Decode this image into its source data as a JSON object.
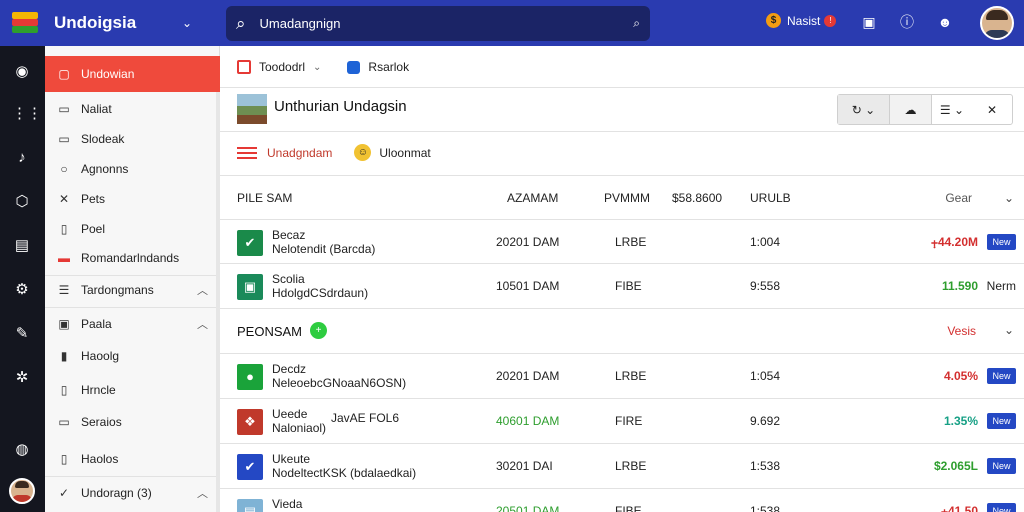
{
  "topbar": {
    "brand": "Undoigsia",
    "search_text": "Umadangnign",
    "notif_label": "Nasist",
    "avatar_alt": ""
  },
  "sidebar": {
    "items": [
      {
        "icon": "folder-icon",
        "label": "Undowian",
        "active": true
      },
      {
        "icon": "note-icon",
        "label": "Naliat"
      },
      {
        "icon": "doc-icon",
        "label": "Slodeak"
      },
      {
        "icon": "search-icon",
        "label": "Agnonns"
      },
      {
        "icon": "tool-icon",
        "label": "Pets"
      },
      {
        "icon": "file-icon",
        "label": "Poel"
      },
      {
        "icon": "table-icon",
        "label": "Romandarlndands"
      },
      {
        "icon": "list-icon",
        "label": "Tardongmans",
        "chevron": "^"
      },
      {
        "icon": "image-icon",
        "label": "Paala",
        "chevron": "^"
      },
      {
        "icon": "video-icon",
        "label": "Haoolg"
      },
      {
        "icon": "page-icon",
        "label": "Hrncle"
      },
      {
        "icon": "box-icon",
        "label": "Seraios"
      },
      {
        "icon": "file2-icon",
        "label": "Haolos"
      },
      {
        "icon": "check-icon",
        "label": "Undoragn (3)",
        "chevron": "^"
      }
    ]
  },
  "main": {
    "breadcrumb": {
      "item1": "Toododrl",
      "item2": "Rsarlok"
    },
    "title": "Unthurian Undagsin",
    "subbar": {
      "label1": "Unadgndam",
      "label2": "Uloonmat"
    },
    "table_header": {
      "col_name": "PILE   SAM",
      "col_time": "AZAMAM",
      "col_type": "PVMMM",
      "col_num": "$58.8600",
      "col_unit": "URULB",
      "col_right": "Gear"
    },
    "group1_rows": [
      {
        "icon_color": "#1a8a4a",
        "icon": "✔",
        "name": "Becaz",
        "sub": "Nelotendit (Barcda)",
        "time": "20201 DAM",
        "type": "LRBE",
        "num": "1:004",
        "amount": "⨥44.20M",
        "amount_color": "#d32f2f",
        "tag": "New"
      },
      {
        "icon_color": "#1a8a5a",
        "icon": "▣",
        "name": "Scolia",
        "sub": "HdolgdCSdrdaun)",
        "time": "10501 DAM",
        "type": "FIBE",
        "num": "9:558",
        "amount": "11.590",
        "amount_color": "#2e9e2e",
        "word": "Nerm"
      }
    ],
    "group2": {
      "title": "PEONSAM",
      "badge": "+",
      "right_label": "Vesis"
    },
    "group2_rows": [
      {
        "icon_color": "#1aa33a",
        "icon": "●",
        "name": "Decdz",
        "sub": "NeleoebcGNoaaN6OSN)",
        "time": "20201 DAM",
        "type": "LRBE",
        "num": "1:054",
        "amount": "4.05%",
        "amount_color": "#d32f2f",
        "tag": "New"
      },
      {
        "icon_color": "#c0392b",
        "icon": "❖",
        "name": "Ueede",
        "sub": "Naloniaol)",
        "extra": "JavAE FOL6",
        "time": "40601 DAM",
        "time_green": true,
        "type": "FIRE",
        "num": "9.692",
        "amount": "1.35%",
        "amount_color": "#16a085",
        "tag": "New"
      },
      {
        "icon_color": "#2448c4",
        "icon": "✔",
        "name": "Ukeute",
        "sub": "NodeltectKSK (bdalaedkai)",
        "time": "30201 DAI",
        "type": "LRBE",
        "num": "1:538",
        "amount": "$2.065L",
        "amount_color": "#2e9e2e",
        "tag": "New"
      },
      {
        "icon_color": "#7fb3d5",
        "icon": "▤",
        "name": "Vieda",
        "sub": "",
        "time": "20501 DAM",
        "time_green": true,
        "type": "FIBE",
        "num": "1:538",
        "amount": "⨥41.50",
        "amount_color": "#d32f2f",
        "tag": "New"
      }
    ]
  }
}
